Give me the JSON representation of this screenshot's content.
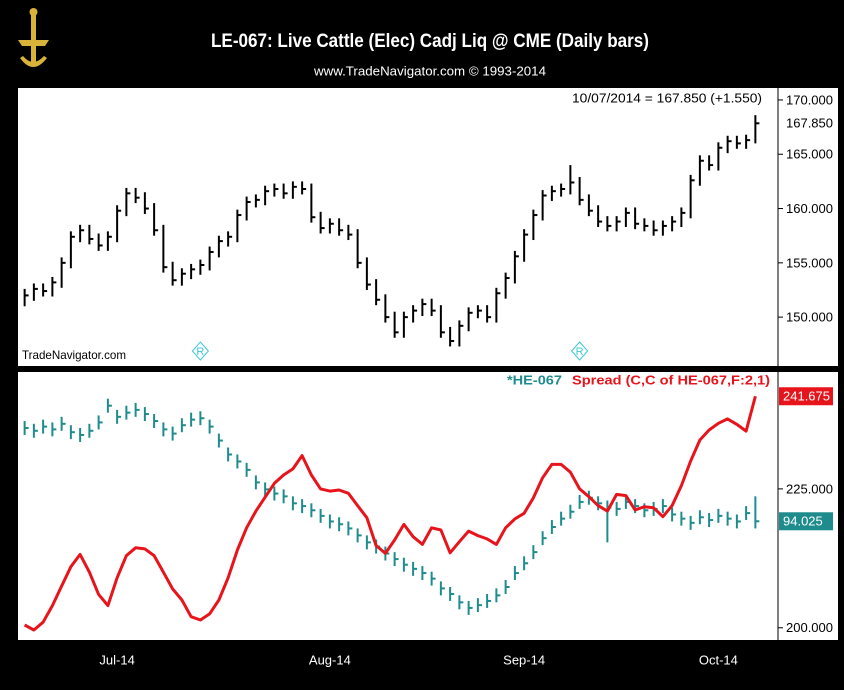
{
  "chart_data": [
    {
      "type": "hlc",
      "title": "LE-067:  Live Cattle (Elec) Cadj Liq @ CME  (Daily bars)",
      "subtitle": "www.TradeNavigator.com © 1993-2014",
      "annotation": "10/07/2014 = 167.850 (+1.550)",
      "watermark": "TradeNavigator.com",
      "markers": [
        {
          "index": 19,
          "label": "R"
        },
        {
          "index": 60,
          "label": "R"
        }
      ],
      "ylim": [
        145.5,
        171.1
      ],
      "yticks": [
        {
          "value": 150,
          "label": "150.000"
        },
        {
          "value": 155,
          "label": "155.000"
        },
        {
          "value": 160,
          "label": "160.000"
        },
        {
          "value": 165,
          "label": "165.000"
        },
        {
          "value": 170,
          "label": "170.000"
        }
      ],
      "series": [
        {
          "color": "#000000",
          "high": [
            152.6,
            153.1,
            153.1,
            153.7,
            155.5,
            157.9,
            158.5,
            158.5,
            157.7,
            157.9,
            160.3,
            161.9,
            161.9,
            161.5,
            160.5,
            158.5,
            155.1,
            154.5,
            154.9,
            155.3,
            156.5,
            157.5,
            157.9,
            159.9,
            161.1,
            161.3,
            162.1,
            162.3,
            162.3,
            162.5,
            162.5,
            162.3,
            159.7,
            159.1,
            159.1,
            158.5,
            158.1,
            155.5,
            153.5,
            152.1,
            150.5,
            150.5,
            151.1,
            151.7,
            151.7,
            151.1,
            149.1,
            149.7,
            150.9,
            151.1,
            151.1,
            152.7,
            154.1,
            156.1,
            158.1,
            159.9,
            161.7,
            162.1,
            162.3,
            164.0,
            162.9,
            161.3,
            160.3,
            159.3,
            159.3,
            160.1,
            160.1,
            159.1,
            158.9,
            158.9,
            159.3,
            160.1,
            163.1,
            164.9,
            164.9,
            166.1,
            166.7,
            166.7,
            166.8,
            168.6
          ],
          "low": [
            151.0,
            151.5,
            151.9,
            151.9,
            152.7,
            154.5,
            156.9,
            156.7,
            156.1,
            156.1,
            156.9,
            159.3,
            160.5,
            159.5,
            157.5,
            154.1,
            152.9,
            152.9,
            153.5,
            153.9,
            154.3,
            155.5,
            156.5,
            156.9,
            158.9,
            160.1,
            160.3,
            161.1,
            160.9,
            160.9,
            161.3,
            158.7,
            157.7,
            157.7,
            157.5,
            157.1,
            154.5,
            152.5,
            151.1,
            149.5,
            148.1,
            148.1,
            149.5,
            150.1,
            150.1,
            148.1,
            147.3,
            147.3,
            148.7,
            149.9,
            149.5,
            149.5,
            151.7,
            153.1,
            155.1,
            157.1,
            158.9,
            160.7,
            161.1,
            161.3,
            160.3,
            159.3,
            158.3,
            157.9,
            157.9,
            158.3,
            158.1,
            157.9,
            157.5,
            157.5,
            157.9,
            158.3,
            159.1,
            162.1,
            163.5,
            163.5,
            165.1,
            165.5,
            165.5,
            166.0
          ],
          "close": [
            152.0,
            152.6,
            152.4,
            153.2,
            155.0,
            157.4,
            158.0,
            157.2,
            156.6,
            157.4,
            159.8,
            161.4,
            161.0,
            160.0,
            158.0,
            154.6,
            153.4,
            154.0,
            154.4,
            154.8,
            156.0,
            157.0,
            157.4,
            159.4,
            160.6,
            160.8,
            161.6,
            161.8,
            161.4,
            162.0,
            161.8,
            159.2,
            158.2,
            158.6,
            158.0,
            157.6,
            155.0,
            153.0,
            151.6,
            150.0,
            148.6,
            150.0,
            150.6,
            151.2,
            150.6,
            148.6,
            147.8,
            149.2,
            150.4,
            150.6,
            150.0,
            152.2,
            153.6,
            155.6,
            157.6,
            159.4,
            161.2,
            161.6,
            161.8,
            162.4,
            160.8,
            159.8,
            158.8,
            158.4,
            158.8,
            159.6,
            158.6,
            158.4,
            158.0,
            158.4,
            158.8,
            159.6,
            162.6,
            164.4,
            164.0,
            165.6,
            166.2,
            166.0,
            166.3,
            167.85
          ],
          "last_label": "167.850"
        }
      ]
    },
    {
      "type": "combo",
      "categories": [
        null,
        null,
        null,
        null,
        null,
        null,
        null,
        null,
        null,
        null,
        "Jul-14",
        null,
        null,
        null,
        null,
        null,
        null,
        null,
        null,
        null,
        null,
        null,
        null,
        null,
        null,
        null,
        null,
        null,
        null,
        null,
        null,
        null,
        null,
        "Aug-14",
        null,
        null,
        null,
        null,
        null,
        null,
        null,
        null,
        null,
        null,
        null,
        null,
        null,
        null,
        null,
        null,
        null,
        null,
        null,
        null,
        "Sep-14",
        null,
        null,
        null,
        null,
        null,
        null,
        null,
        null,
        null,
        null,
        null,
        null,
        null,
        null,
        null,
        null,
        null,
        null,
        null,
        null,
        "Oct-14",
        null,
        null,
        null,
        null
      ],
      "ylim": [
        197.8,
        245.5
      ],
      "yticks": [
        {
          "value": 200,
          "label": "200.000"
        },
        {
          "value": 225,
          "label": "225.000"
        }
      ],
      "y2lim": [
        77,
        115
      ],
      "series": [
        {
          "name": "*HE-067",
          "color": "#1e8c8c",
          "axis": "y2",
          "high": [
            108.4,
            108.0,
            108.6,
            108.2,
            109.0,
            107.8,
            107.4,
            108.0,
            109.2,
            111.6,
            110.0,
            110.6,
            111.0,
            110.4,
            109.4,
            108.2,
            107.6,
            108.8,
            109.6,
            109.8,
            108.6,
            106.6,
            104.6,
            103.6,
            102.4,
            100.6,
            99.6,
            99.0,
            98.6,
            97.6,
            97.2,
            96.6,
            95.8,
            95.0,
            94.6,
            94.0,
            93.0,
            92.0,
            91.4,
            90.4,
            89.6,
            88.8,
            88.2,
            87.6,
            86.8,
            85.4,
            84.6,
            83.4,
            82.6,
            83.0,
            83.6,
            84.4,
            85.6,
            87.6,
            89.0,
            90.6,
            92.6,
            94.2,
            95.4,
            96.4,
            97.8,
            98.4,
            97.6,
            97.0,
            96.8,
            97.8,
            97.2,
            96.6,
            96.8,
            97.2,
            96.0,
            95.4,
            94.8,
            95.6,
            95.2,
            95.8,
            95.4,
            95.0,
            96.2,
            97.6
          ],
          "low": [
            106.4,
            106.0,
            106.6,
            106.2,
            107.0,
            105.8,
            105.4,
            106.0,
            107.2,
            109.6,
            108.0,
            108.6,
            109.0,
            108.4,
            107.4,
            106.2,
            105.6,
            106.8,
            107.6,
            107.8,
            106.6,
            104.6,
            102.6,
            101.6,
            100.4,
            98.6,
            97.6,
            97.0,
            96.6,
            95.6,
            95.2,
            94.6,
            93.8,
            93.0,
            92.6,
            92.0,
            91.0,
            90.0,
            89.4,
            88.4,
            87.6,
            86.8,
            86.2,
            85.6,
            84.8,
            83.4,
            82.6,
            81.4,
            80.6,
            81.0,
            81.6,
            82.4,
            83.6,
            85.6,
            87.0,
            88.6,
            90.6,
            92.2,
            93.4,
            94.4,
            95.8,
            96.4,
            95.6,
            91.0,
            94.8,
            95.8,
            95.2,
            94.6,
            94.8,
            95.2,
            94.0,
            93.4,
            92.8,
            93.6,
            93.2,
            93.8,
            93.4,
            93.0,
            94.2,
            93.0
          ],
          "close": [
            107.4,
            107.0,
            107.6,
            107.2,
            108.0,
            106.8,
            106.4,
            107.0,
            108.2,
            110.6,
            109.0,
            109.6,
            110.0,
            109.4,
            108.4,
            107.2,
            106.6,
            107.8,
            108.6,
            108.8,
            107.6,
            105.6,
            103.6,
            102.6,
            101.4,
            99.6,
            98.6,
            98.0,
            97.6,
            96.6,
            96.2,
            95.6,
            94.8,
            94.0,
            93.6,
            93.0,
            92.0,
            91.0,
            90.4,
            89.4,
            88.6,
            87.8,
            87.2,
            86.6,
            85.8,
            84.4,
            83.6,
            82.4,
            81.6,
            82.0,
            82.6,
            83.4,
            84.6,
            86.6,
            88.0,
            89.6,
            91.6,
            93.2,
            94.4,
            95.4,
            96.8,
            97.4,
            96.6,
            96.0,
            95.8,
            96.8,
            96.2,
            95.6,
            95.8,
            96.2,
            95.0,
            94.4,
            93.8,
            94.6,
            94.2,
            94.8,
            94.4,
            94.0,
            95.2,
            94.025
          ],
          "last_label": "94.025"
        },
        {
          "name": "Spread (C,C of HE-067,F:2,1)",
          "color": "#e8141c",
          "values": [
            200.5,
            199.6,
            201.0,
            204.0,
            207.5,
            211.0,
            213.2,
            210.0,
            206.0,
            204.0,
            209.0,
            213.0,
            214.4,
            214.2,
            213.0,
            210.0,
            207.0,
            205.0,
            202.0,
            201.4,
            202.5,
            205.0,
            209.0,
            214.0,
            218.0,
            221.0,
            223.5,
            226.0,
            227.5,
            228.6,
            231.0,
            227.5,
            225.0,
            224.6,
            224.8,
            224.2,
            222.0,
            219.8,
            214.8,
            213.4,
            215.8,
            218.6,
            216.4,
            215.0,
            218.0,
            217.6,
            213.5,
            215.5,
            217.4,
            216.6,
            216.0,
            215.0,
            218.0,
            219.6,
            220.6,
            223.4,
            227.0,
            229.4,
            229.4,
            228.0,
            225.0,
            223.6,
            222.0,
            221.0,
            224.0,
            223.8,
            221.2,
            221.8,
            221.6,
            220.0,
            222.0,
            225.6,
            230.0,
            233.8,
            235.6,
            236.8,
            237.6,
            236.6,
            235.4,
            241.675
          ],
          "last_label": "241.675"
        }
      ]
    }
  ]
}
